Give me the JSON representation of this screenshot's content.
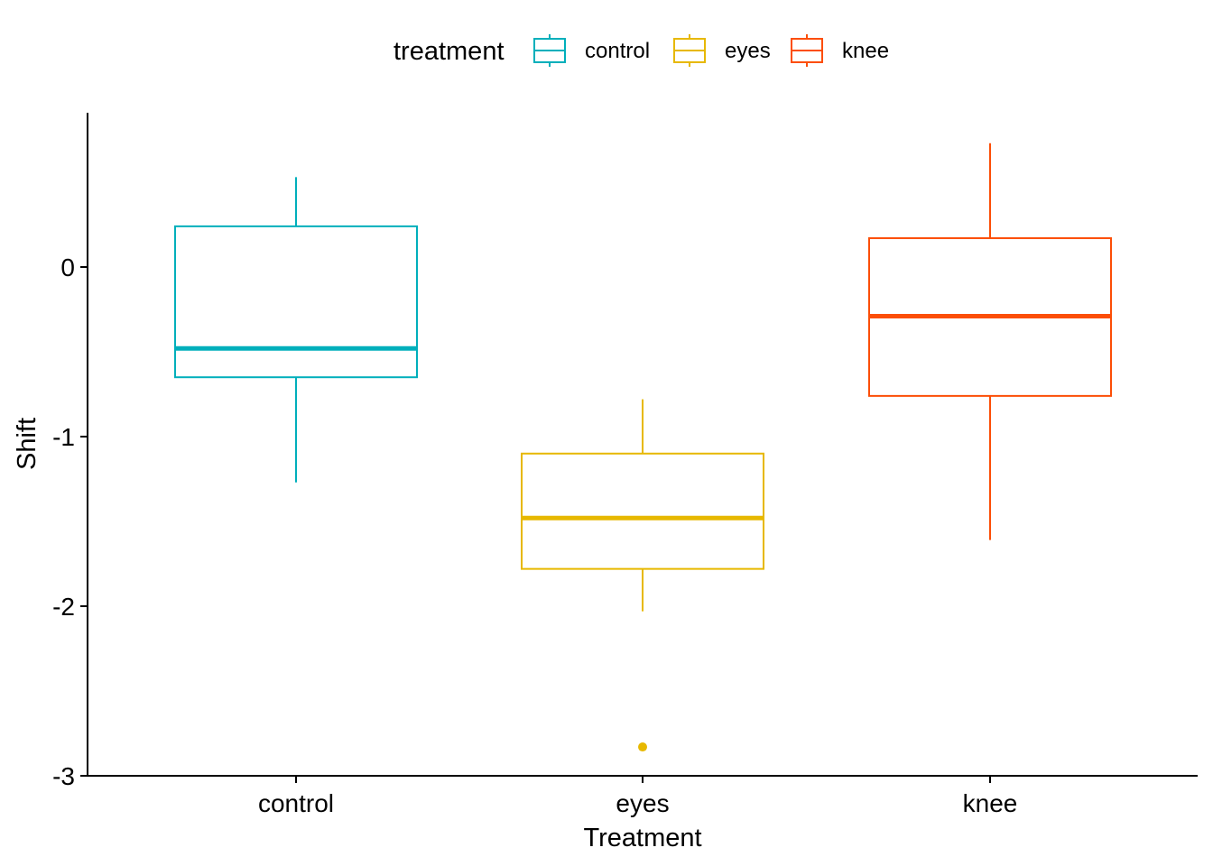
{
  "chart_data": {
    "type": "box",
    "xlabel": "Treatment",
    "ylabel": "Shift",
    "categories": [
      "control",
      "eyes",
      "knee"
    ],
    "ylim": [
      -3,
      0.9
    ],
    "yticks": [
      0,
      -1,
      -2,
      -3
    ],
    "ytick_labels": [
      "0",
      "-1",
      "-2",
      "-3"
    ],
    "legend": {
      "title": "treatment",
      "position": "top",
      "entries": [
        "control",
        "eyes",
        "knee"
      ]
    },
    "colors": {
      "control": "#00AFBB",
      "eyes": "#E7B800",
      "knee": "#FC4E07"
    },
    "series": [
      {
        "name": "control",
        "min": -1.27,
        "q1": -0.65,
        "median": -0.48,
        "q3": 0.24,
        "max": 0.53,
        "outliers": []
      },
      {
        "name": "eyes",
        "min": -2.03,
        "q1": -1.78,
        "median": -1.48,
        "q3": -1.1,
        "max": -0.78,
        "outliers": [
          -2.83
        ]
      },
      {
        "name": "knee",
        "min": -1.61,
        "q1": -0.76,
        "median": -0.29,
        "q3": 0.17,
        "max": 0.73,
        "outliers": []
      }
    ],
    "grid": false
  }
}
